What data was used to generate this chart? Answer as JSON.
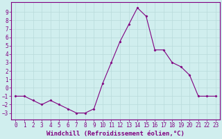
{
  "x": [
    0,
    1,
    2,
    3,
    4,
    5,
    6,
    7,
    8,
    9,
    10,
    11,
    12,
    13,
    14,
    15,
    16,
    17,
    18,
    19,
    20,
    21,
    22,
    23
  ],
  "y": [
    -1,
    -1,
    -1.5,
    -2,
    -1.5,
    -2,
    -2.5,
    -3,
    -3,
    -2.5,
    0.5,
    3,
    5.5,
    7.5,
    9.5,
    8.5,
    4.5,
    4.5,
    3,
    2.5,
    1.5,
    -1,
    -1,
    -1
  ],
  "line_color": "#800080",
  "marker": "D",
  "marker_size": 1.5,
  "line_width": 0.8,
  "xlabel": "Windchill (Refroidissement éolien,°C)",
  "xlim": [
    -0.5,
    23.5
  ],
  "ylim": [
    -3.8,
    10.2
  ],
  "yticks": [
    -3,
    -2,
    -1,
    0,
    1,
    2,
    3,
    4,
    5,
    6,
    7,
    8,
    9
  ],
  "xticks": [
    0,
    1,
    2,
    3,
    4,
    5,
    6,
    7,
    8,
    9,
    10,
    11,
    12,
    13,
    14,
    15,
    16,
    17,
    18,
    19,
    20,
    21,
    22,
    23
  ],
  "bg_color": "#d0eeee",
  "grid_color": "#b8dada",
  "spine_color": "#800080",
  "tick_color": "#800080",
  "label_color": "#800080",
  "xlabel_fontsize": 6.5,
  "tick_fontsize": 5.5
}
